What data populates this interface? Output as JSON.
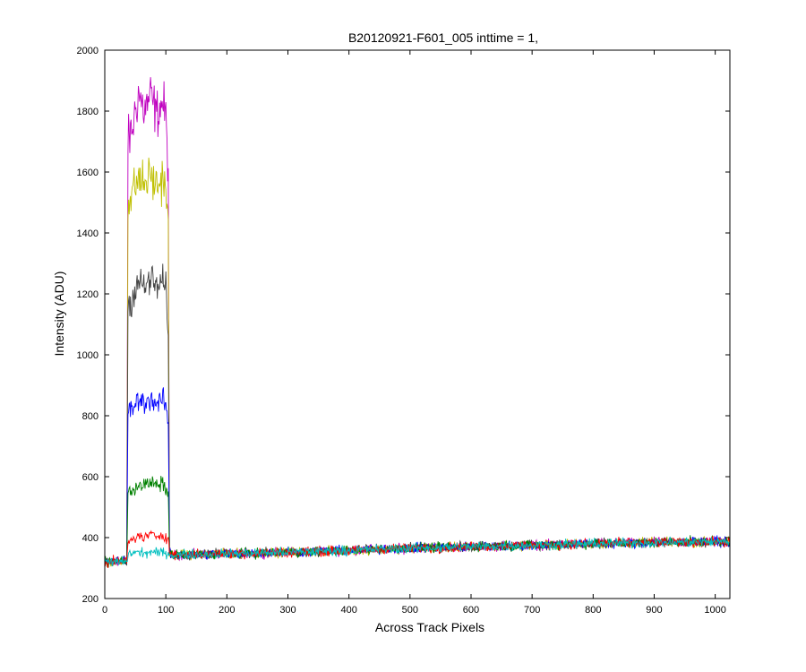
{
  "chart_data": {
    "type": "line",
    "title": "B20120921-F601_005 inttime = 1,",
    "xlabel": "Across Track Pixels",
    "ylabel": "Intensity (ADU)",
    "xlim": [
      0,
      1024
    ],
    "ylim": [
      200,
      2000
    ],
    "xticks": [
      0,
      100,
      200,
      300,
      400,
      500,
      600,
      700,
      800,
      900,
      1000
    ],
    "yticks": [
      200,
      400,
      600,
      800,
      1000,
      1200,
      1400,
      1600,
      1800,
      2000
    ],
    "grid": false,
    "legend": "none",
    "series": [
      {
        "color": "#bf00bf",
        "points": [
          [
            0,
            318
          ],
          [
            36,
            325
          ],
          [
            38,
            1700
          ],
          [
            45,
            1740
          ],
          [
            55,
            1860
          ],
          [
            65,
            1800
          ],
          [
            75,
            1850
          ],
          [
            85,
            1790
          ],
          [
            95,
            1830
          ],
          [
            100,
            1780
          ],
          [
            104,
            1600
          ],
          [
            106,
            350
          ],
          [
            110,
            343
          ],
          [
            200,
            347
          ],
          [
            300,
            352
          ],
          [
            400,
            358
          ],
          [
            500,
            365
          ],
          [
            600,
            370
          ],
          [
            700,
            375
          ],
          [
            800,
            380
          ],
          [
            900,
            384
          ],
          [
            1024,
            387
          ]
        ]
      },
      {
        "color": "#bfbf00",
        "points": [
          [
            0,
            318
          ],
          [
            36,
            325
          ],
          [
            38,
            1480
          ],
          [
            45,
            1530
          ],
          [
            55,
            1580
          ],
          [
            65,
            1560
          ],
          [
            75,
            1590
          ],
          [
            85,
            1550
          ],
          [
            95,
            1580
          ],
          [
            100,
            1560
          ],
          [
            104,
            1400
          ],
          [
            106,
            350
          ],
          [
            110,
            343
          ],
          [
            200,
            347
          ],
          [
            300,
            352
          ],
          [
            400,
            358
          ],
          [
            500,
            365
          ],
          [
            600,
            370
          ],
          [
            700,
            375
          ],
          [
            800,
            380
          ],
          [
            900,
            384
          ],
          [
            1024,
            387
          ]
        ]
      },
      {
        "color": "#404040",
        "points": [
          [
            0,
            318
          ],
          [
            36,
            325
          ],
          [
            38,
            1150
          ],
          [
            45,
            1190
          ],
          [
            55,
            1240
          ],
          [
            65,
            1220
          ],
          [
            75,
            1250
          ],
          [
            85,
            1220
          ],
          [
            95,
            1240
          ],
          [
            100,
            1210
          ],
          [
            104,
            1100
          ],
          [
            106,
            350
          ],
          [
            110,
            343
          ],
          [
            200,
            347
          ],
          [
            300,
            352
          ],
          [
            400,
            358
          ],
          [
            500,
            365
          ],
          [
            600,
            370
          ],
          [
            700,
            375
          ],
          [
            800,
            380
          ],
          [
            900,
            384
          ],
          [
            1024,
            387
          ]
        ]
      },
      {
        "color": "#0000ff",
        "points": [
          [
            0,
            318
          ],
          [
            36,
            325
          ],
          [
            38,
            800
          ],
          [
            45,
            830
          ],
          [
            55,
            850
          ],
          [
            65,
            845
          ],
          [
            75,
            855
          ],
          [
            85,
            840
          ],
          [
            95,
            850
          ],
          [
            100,
            835
          ],
          [
            104,
            780
          ],
          [
            106,
            350
          ],
          [
            110,
            343
          ],
          [
            200,
            347
          ],
          [
            300,
            352
          ],
          [
            400,
            358
          ],
          [
            500,
            365
          ],
          [
            600,
            370
          ],
          [
            700,
            375
          ],
          [
            800,
            380
          ],
          [
            900,
            384
          ],
          [
            1024,
            387
          ]
        ]
      },
      {
        "color": "#008000",
        "points": [
          [
            0,
            318
          ],
          [
            36,
            325
          ],
          [
            38,
            540
          ],
          [
            45,
            555
          ],
          [
            55,
            575
          ],
          [
            65,
            570
          ],
          [
            75,
            580
          ],
          [
            85,
            570
          ],
          [
            95,
            575
          ],
          [
            100,
            565
          ],
          [
            104,
            540
          ],
          [
            106,
            350
          ],
          [
            110,
            343
          ],
          [
            200,
            347
          ],
          [
            300,
            352
          ],
          [
            400,
            358
          ],
          [
            500,
            365
          ],
          [
            600,
            370
          ],
          [
            700,
            375
          ],
          [
            800,
            380
          ],
          [
            900,
            384
          ],
          [
            1024,
            387
          ]
        ]
      },
      {
        "color": "#ff0000",
        "points": [
          [
            0,
            318
          ],
          [
            36,
            325
          ],
          [
            38,
            380
          ],
          [
            45,
            395
          ],
          [
            55,
            405
          ],
          [
            65,
            400
          ],
          [
            75,
            410
          ],
          [
            85,
            405
          ],
          [
            95,
            410
          ],
          [
            100,
            400
          ],
          [
            104,
            395
          ],
          [
            106,
            350
          ],
          [
            110,
            343
          ],
          [
            200,
            347
          ],
          [
            300,
            352
          ],
          [
            400,
            358
          ],
          [
            500,
            365
          ],
          [
            600,
            370
          ],
          [
            700,
            375
          ],
          [
            800,
            380
          ],
          [
            900,
            384
          ],
          [
            1024,
            387
          ]
        ]
      },
      {
        "color": "#00bfbf",
        "points": [
          [
            0,
            318
          ],
          [
            36,
            322
          ],
          [
            38,
            345
          ],
          [
            45,
            350
          ],
          [
            55,
            352
          ],
          [
            65,
            348
          ],
          [
            75,
            352
          ],
          [
            85,
            350
          ],
          [
            95,
            352
          ],
          [
            100,
            350
          ],
          [
            104,
            348
          ],
          [
            106,
            345
          ],
          [
            110,
            343
          ],
          [
            200,
            347
          ],
          [
            300,
            352
          ],
          [
            400,
            358
          ],
          [
            500,
            365
          ],
          [
            600,
            370
          ],
          [
            700,
            375
          ],
          [
            800,
            380
          ],
          [
            900,
            384
          ],
          [
            1024,
            387
          ]
        ]
      }
    ],
    "noise_amplitude": 12
  }
}
